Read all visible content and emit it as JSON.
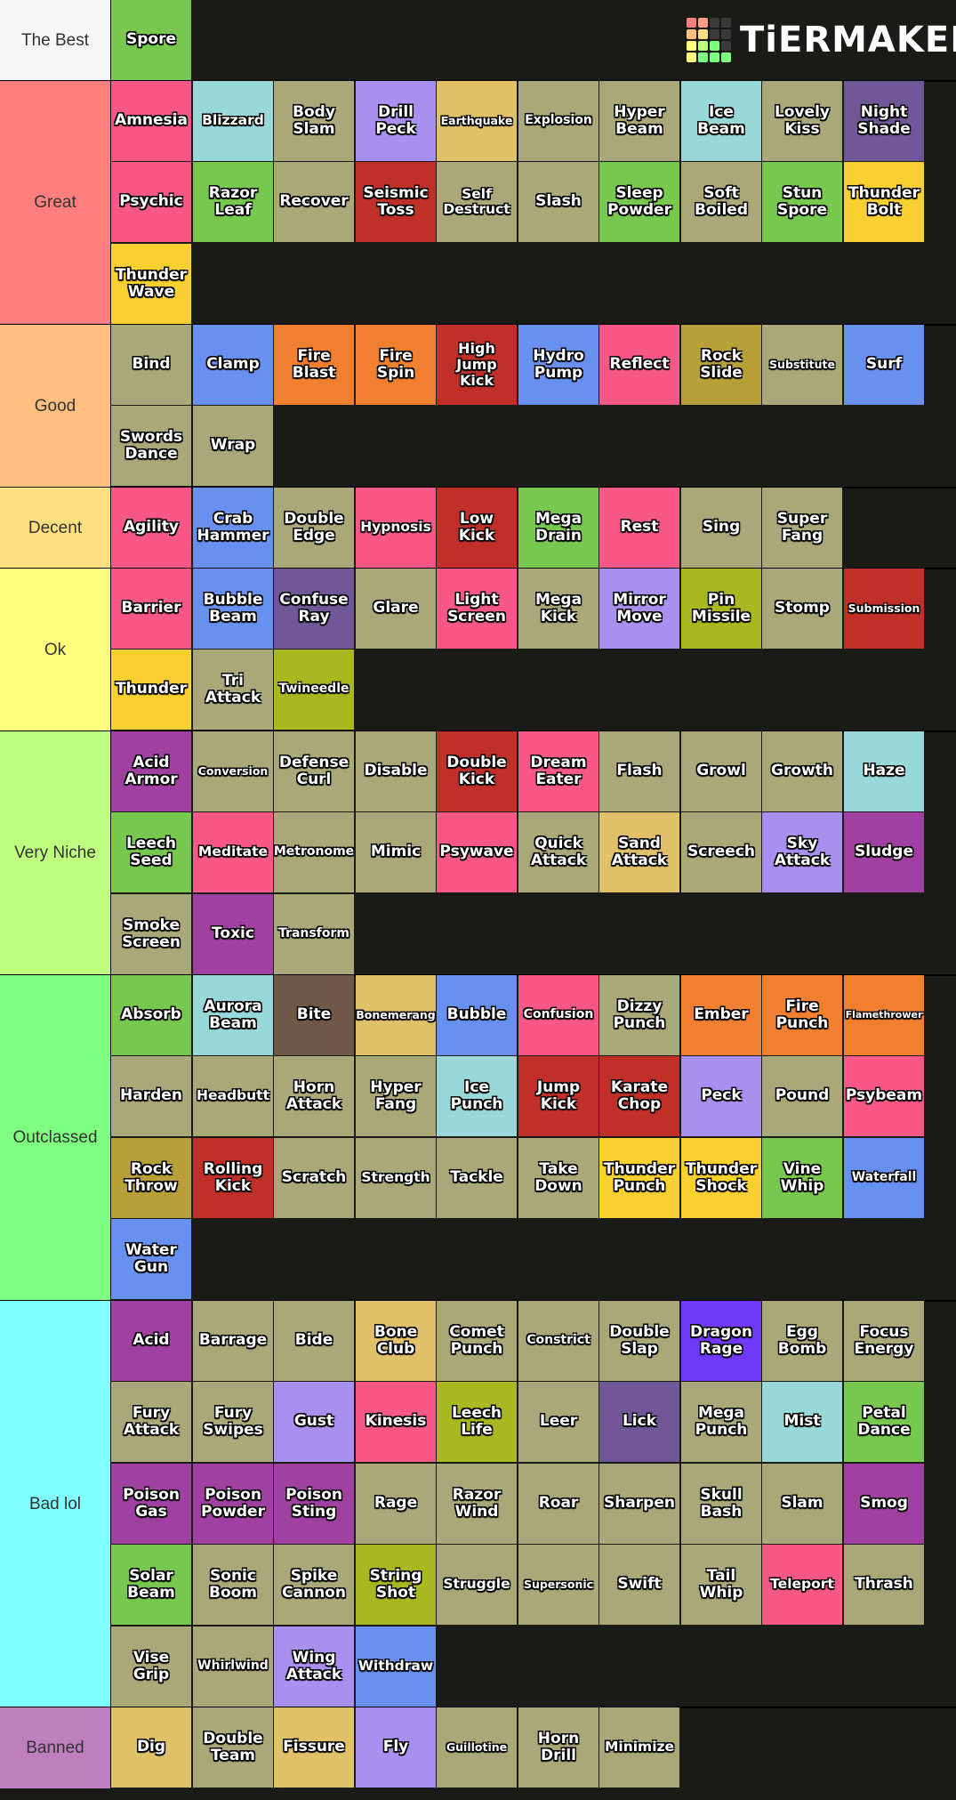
{
  "logo": {
    "text": "TiERMAKER",
    "grid_colors": [
      "#ff7f7f",
      "#ff9f7f",
      "#3a3a3a",
      "#3a3a3a",
      "#ffbf7f",
      "#ffdf7f",
      "#3a3a3a",
      "#3a3a3a",
      "#ffff7f",
      "#bfff7f",
      "#7fff7f",
      "#3a3a3a",
      "#ffff7f",
      "#7fff7f",
      "#7fff7f",
      "#7fff7f"
    ]
  },
  "colors": {
    "normal": "#a8a878",
    "grass": "#78c850",
    "ice": "#98d8d8",
    "flying": "#a890f0",
    "ground": "#e0c068",
    "ghost": "#705898",
    "psychic": "#f85888",
    "fighting": "#c03028",
    "electric": "#f8d030",
    "fire": "#f08030",
    "water": "#6890f0",
    "rock": "#b8a038",
    "poison": "#a040a0",
    "bug": "#a8b820",
    "dragon": "#7038f8",
    "dark": "#705848"
  },
  "tiers": [
    {
      "label": "The Best",
      "color": "#f7f7f7",
      "rows": 1,
      "items": [
        {
          "name": "Spore",
          "type": "grass"
        }
      ]
    },
    {
      "label": "Great",
      "color": "#ff7f7f",
      "rows": 3,
      "items": [
        {
          "name": "Amnesia",
          "type": "psychic"
        },
        {
          "name": "Blizzard",
          "type": "ice"
        },
        {
          "name": "Body\nSlam",
          "type": "normal"
        },
        {
          "name": "Drill\nPeck",
          "type": "flying"
        },
        {
          "name": "Earthquake",
          "type": "ground"
        },
        {
          "name": "Explosion",
          "type": "normal"
        },
        {
          "name": "Hyper\nBeam",
          "type": "normal"
        },
        {
          "name": "Ice\nBeam",
          "type": "ice"
        },
        {
          "name": "Lovely\nKiss",
          "type": "normal"
        },
        {
          "name": "Night\nShade",
          "type": "ghost"
        },
        {
          "name": "Psychic",
          "type": "psychic"
        },
        {
          "name": "Razor\nLeaf",
          "type": "grass"
        },
        {
          "name": "Recover",
          "type": "normal"
        },
        {
          "name": "Seismic\nToss",
          "type": "fighting"
        },
        {
          "name": "Self\nDestruct",
          "type": "normal"
        },
        {
          "name": "Slash",
          "type": "normal"
        },
        {
          "name": "Sleep\nPowder",
          "type": "grass"
        },
        {
          "name": "Soft\nBoiled",
          "type": "normal"
        },
        {
          "name": "Stun\nSpore",
          "type": "grass"
        },
        {
          "name": "Thunder\nBolt",
          "type": "electric"
        },
        {
          "name": "Thunder\nWave",
          "type": "electric"
        }
      ]
    },
    {
      "label": "Good",
      "color": "#ffbf7f",
      "rows": 2,
      "items": [
        {
          "name": "Bind",
          "type": "normal"
        },
        {
          "name": "Clamp",
          "type": "water"
        },
        {
          "name": "Fire\nBlast",
          "type": "fire"
        },
        {
          "name": "Fire\nSpin",
          "type": "fire"
        },
        {
          "name": "High\nJump\nKick",
          "type": "fighting"
        },
        {
          "name": "Hydro\nPump",
          "type": "water"
        },
        {
          "name": "Reflect",
          "type": "psychic"
        },
        {
          "name": "Rock\nSlide",
          "type": "rock"
        },
        {
          "name": "Substitute",
          "type": "normal"
        },
        {
          "name": "Surf",
          "type": "water"
        },
        {
          "name": "Swords\nDance",
          "type": "normal"
        },
        {
          "name": "Wrap",
          "type": "normal"
        }
      ]
    },
    {
      "label": "Decent",
      "color": "#ffdf7f",
      "rows": 1,
      "items": [
        {
          "name": "Agility",
          "type": "psychic"
        },
        {
          "name": "Crab\nHammer",
          "type": "water"
        },
        {
          "name": "Double\nEdge",
          "type": "normal"
        },
        {
          "name": "Hypnosis",
          "type": "psychic"
        },
        {
          "name": "Low\nKick",
          "type": "fighting"
        },
        {
          "name": "Mega\nDrain",
          "type": "grass"
        },
        {
          "name": "Rest",
          "type": "psychic"
        },
        {
          "name": "Sing",
          "type": "normal"
        },
        {
          "name": "Super\nFang",
          "type": "normal"
        }
      ]
    },
    {
      "label": "Ok",
      "color": "#ffff7f",
      "rows": 2,
      "items": [
        {
          "name": "Barrier",
          "type": "psychic"
        },
        {
          "name": "Bubble\nBeam",
          "type": "water"
        },
        {
          "name": "Confuse\nRay",
          "type": "ghost"
        },
        {
          "name": "Glare",
          "type": "normal"
        },
        {
          "name": "Light\nScreen",
          "type": "psychic"
        },
        {
          "name": "Mega\nKick",
          "type": "normal"
        },
        {
          "name": "Mirror\nMove",
          "type": "flying"
        },
        {
          "name": "Pin\nMissile",
          "type": "bug"
        },
        {
          "name": "Stomp",
          "type": "normal"
        },
        {
          "name": "Submission",
          "type": "fighting"
        },
        {
          "name": "Thunder",
          "type": "electric"
        },
        {
          "name": "Tri\nAttack",
          "type": "normal"
        },
        {
          "name": "Twineedle",
          "type": "bug"
        }
      ]
    },
    {
      "label": "Very Niche",
      "color": "#bfff7f",
      "rows": 3,
      "items": [
        {
          "name": "Acid\nArmor",
          "type": "poison"
        },
        {
          "name": "Conversion",
          "type": "normal"
        },
        {
          "name": "Defense\nCurl",
          "type": "normal"
        },
        {
          "name": "Disable",
          "type": "normal"
        },
        {
          "name": "Double\nKick",
          "type": "fighting"
        },
        {
          "name": "Dream\nEater",
          "type": "psychic"
        },
        {
          "name": "Flash",
          "type": "normal"
        },
        {
          "name": "Growl",
          "type": "normal"
        },
        {
          "name": "Growth",
          "type": "normal"
        },
        {
          "name": "Haze",
          "type": "ice"
        },
        {
          "name": "Leech\nSeed",
          "type": "grass"
        },
        {
          "name": "Meditate",
          "type": "psychic"
        },
        {
          "name": "Metronome",
          "type": "normal"
        },
        {
          "name": "Mimic",
          "type": "normal"
        },
        {
          "name": "Psywave",
          "type": "psychic"
        },
        {
          "name": "Quick\nAttack",
          "type": "normal"
        },
        {
          "name": "Sand\nAttack",
          "type": "ground"
        },
        {
          "name": "Screech",
          "type": "normal"
        },
        {
          "name": "Sky\nAttack",
          "type": "flying"
        },
        {
          "name": "Sludge",
          "type": "poison"
        },
        {
          "name": "Smoke\nScreen",
          "type": "normal"
        },
        {
          "name": "Toxic",
          "type": "poison"
        },
        {
          "name": "Transform",
          "type": "normal"
        }
      ]
    },
    {
      "label": "Outclassed",
      "color": "#7fff7f",
      "rows": 4,
      "items": [
        {
          "name": "Absorb",
          "type": "grass"
        },
        {
          "name": "Aurora\nBeam",
          "type": "ice"
        },
        {
          "name": "Bite",
          "type": "dark"
        },
        {
          "name": "Bonemerang",
          "type": "ground"
        },
        {
          "name": "Bubble",
          "type": "water"
        },
        {
          "name": "Confusion",
          "type": "psychic"
        },
        {
          "name": "Dizzy\nPunch",
          "type": "normal"
        },
        {
          "name": "Ember",
          "type": "fire"
        },
        {
          "name": "Fire\nPunch",
          "type": "fire"
        },
        {
          "name": "Flamethrower",
          "type": "fire"
        },
        {
          "name": "Harden",
          "type": "normal"
        },
        {
          "name": "Headbutt",
          "type": "normal"
        },
        {
          "name": "Horn\nAttack",
          "type": "normal"
        },
        {
          "name": "Hyper\nFang",
          "type": "normal"
        },
        {
          "name": "Ice\nPunch",
          "type": "ice"
        },
        {
          "name": "Jump\nKick",
          "type": "fighting"
        },
        {
          "name": "Karate\nChop",
          "type": "fighting"
        },
        {
          "name": "Peck",
          "type": "flying"
        },
        {
          "name": "Pound",
          "type": "normal"
        },
        {
          "name": "Psybeam",
          "type": "psychic"
        },
        {
          "name": "Rock\nThrow",
          "type": "rock"
        },
        {
          "name": "Rolling\nKick",
          "type": "fighting"
        },
        {
          "name": "Scratch",
          "type": "normal"
        },
        {
          "name": "Strength",
          "type": "normal"
        },
        {
          "name": "Tackle",
          "type": "normal"
        },
        {
          "name": "Take\nDown",
          "type": "normal"
        },
        {
          "name": "Thunder\nPunch",
          "type": "electric"
        },
        {
          "name": "Thunder\nShock",
          "type": "electric"
        },
        {
          "name": "Vine\nWhip",
          "type": "grass"
        },
        {
          "name": "Waterfall",
          "type": "water"
        },
        {
          "name": "Water\nGun",
          "type": "water"
        }
      ]
    },
    {
      "label": "Bad lol",
      "color": "#7fffff",
      "rows": 5,
      "items": [
        {
          "name": "Acid",
          "type": "poison"
        },
        {
          "name": "Barrage",
          "type": "normal"
        },
        {
          "name": "Bide",
          "type": "normal"
        },
        {
          "name": "Bone\nClub",
          "type": "ground"
        },
        {
          "name": "Comet\nPunch",
          "type": "normal"
        },
        {
          "name": "Constrict",
          "type": "normal"
        },
        {
          "name": "Double\nSlap",
          "type": "normal"
        },
        {
          "name": "Dragon\nRage",
          "type": "dragon"
        },
        {
          "name": "Egg\nBomb",
          "type": "normal"
        },
        {
          "name": "Focus\nEnergy",
          "type": "normal"
        },
        {
          "name": "Fury\nAttack",
          "type": "normal"
        },
        {
          "name": "Fury\nSwipes",
          "type": "normal"
        },
        {
          "name": "Gust",
          "type": "flying"
        },
        {
          "name": "Kinesis",
          "type": "psychic"
        },
        {
          "name": "Leech\nLife",
          "type": "bug"
        },
        {
          "name": "Leer",
          "type": "normal"
        },
        {
          "name": "Lick",
          "type": "ghost"
        },
        {
          "name": "Mega\nPunch",
          "type": "normal"
        },
        {
          "name": "Mist",
          "type": "ice"
        },
        {
          "name": "Petal\nDance",
          "type": "grass"
        },
        {
          "name": "Poison\nGas",
          "type": "poison"
        },
        {
          "name": "Poison\nPowder",
          "type": "poison"
        },
        {
          "name": "Poison\nSting",
          "type": "poison"
        },
        {
          "name": "Rage",
          "type": "normal"
        },
        {
          "name": "Razor\nWind",
          "type": "normal"
        },
        {
          "name": "Roar",
          "type": "normal"
        },
        {
          "name": "Sharpen",
          "type": "normal"
        },
        {
          "name": "Skull\nBash",
          "type": "normal"
        },
        {
          "name": "Slam",
          "type": "normal"
        },
        {
          "name": "Smog",
          "type": "poison"
        },
        {
          "name": "Solar\nBeam",
          "type": "grass"
        },
        {
          "name": "Sonic\nBoom",
          "type": "normal"
        },
        {
          "name": "Spike\nCannon",
          "type": "normal"
        },
        {
          "name": "String\nShot",
          "type": "bug"
        },
        {
          "name": "Struggle",
          "type": "normal"
        },
        {
          "name": "Supersonic",
          "type": "normal"
        },
        {
          "name": "Swift",
          "type": "normal"
        },
        {
          "name": "Tail\nWhip",
          "type": "normal"
        },
        {
          "name": "Teleport",
          "type": "psychic"
        },
        {
          "name": "Thrash",
          "type": "normal"
        },
        {
          "name": "Vise\nGrip",
          "type": "normal"
        },
        {
          "name": "Whirlwind",
          "type": "normal"
        },
        {
          "name": "Wing\nAttack",
          "type": "flying"
        },
        {
          "name": "Withdraw",
          "type": "water"
        }
      ]
    },
    {
      "label": "Banned",
      "color": "#bf7fbf",
      "rows": 1,
      "items": [
        {
          "name": "Dig",
          "type": "ground"
        },
        {
          "name": "Double\nTeam",
          "type": "normal"
        },
        {
          "name": "Fissure",
          "type": "ground"
        },
        {
          "name": "Fly",
          "type": "flying"
        },
        {
          "name": "Guillotine",
          "type": "normal"
        },
        {
          "name": "Horn\nDrill",
          "type": "normal"
        },
        {
          "name": "Minimize",
          "type": "normal"
        }
      ]
    }
  ]
}
